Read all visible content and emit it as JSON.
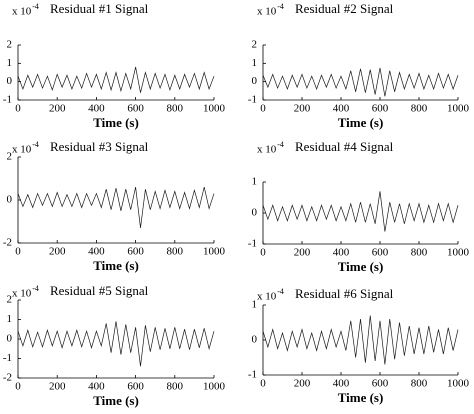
{
  "chart_data": [
    {
      "type": "line",
      "title": "Residual #1 Signal",
      "y_multiplier": "x 10",
      "y_multiplier_exponent": "-4",
      "x_label": "Time (s)",
      "color": "#1a1a1a",
      "xlim": [
        0,
        1000
      ],
      "xticks": [
        0,
        200,
        400,
        600,
        800,
        1000
      ],
      "ylim": [
        -1,
        2
      ],
      "yticks": [
        -1,
        0,
        1,
        2
      ],
      "x": [
        0,
        25,
        50,
        75,
        100,
        125,
        150,
        175,
        200,
        225,
        250,
        275,
        300,
        325,
        350,
        375,
        400,
        425,
        450,
        475,
        500,
        525,
        550,
        575,
        600,
        625,
        650,
        675,
        700,
        725,
        750,
        775,
        800,
        825,
        850,
        875,
        900,
        925,
        950,
        975,
        1000
      ],
      "values": [
        0.3,
        -0.4,
        0.35,
        -0.3,
        0.4,
        -0.35,
        0.3,
        -0.45,
        0.4,
        -0.3,
        0.35,
        -0.4,
        0.3,
        -0.35,
        0.45,
        -0.3,
        0.4,
        -0.4,
        0.5,
        -0.45,
        0.5,
        -0.5,
        0.45,
        -0.4,
        0.8,
        -0.6,
        0.5,
        -0.4,
        0.45,
        -0.35,
        0.4,
        -0.45,
        0.35,
        -0.4,
        0.4,
        -0.3,
        0.45,
        -0.4,
        0.5,
        -0.4,
        0.3
      ]
    },
    {
      "type": "line",
      "title": "Residual #2 Signal",
      "y_multiplier": "x 10",
      "y_multiplier_exponent": "-4",
      "x_label": "Time (s)",
      "color": "#1a1a1a",
      "xlim": [
        0,
        1000
      ],
      "xticks": [
        0,
        200,
        400,
        600,
        800,
        1000
      ],
      "ylim": [
        -1,
        2
      ],
      "yticks": [
        -1,
        0,
        1,
        2
      ],
      "x": [
        0,
        25,
        50,
        75,
        100,
        125,
        150,
        175,
        200,
        225,
        250,
        275,
        300,
        325,
        350,
        375,
        400,
        425,
        450,
        475,
        500,
        525,
        550,
        575,
        600,
        625,
        650,
        675,
        700,
        725,
        750,
        775,
        800,
        825,
        850,
        875,
        900,
        925,
        950,
        975,
        1000
      ],
      "values": [
        0.35,
        -0.3,
        0.4,
        -0.35,
        0.3,
        -0.4,
        0.35,
        -0.3,
        0.4,
        -0.35,
        0.3,
        -0.4,
        0.35,
        -0.3,
        0.4,
        -0.35,
        0.3,
        -0.4,
        0.6,
        -0.55,
        0.7,
        -0.6,
        0.65,
        -0.7,
        0.75,
        -0.8,
        0.6,
        -0.55,
        0.5,
        -0.4,
        0.4,
        -0.35,
        0.45,
        -0.4,
        0.35,
        -0.4,
        0.45,
        -0.35,
        0.4,
        -0.4,
        0.35
      ]
    },
    {
      "type": "line",
      "title": "Residual #3 Signal",
      "y_multiplier": "x 10",
      "y_multiplier_exponent": "-4",
      "x_label": "Time (s)",
      "color": "#1a1a1a",
      "xlim": [
        0,
        1000
      ],
      "xticks": [
        0,
        200,
        400,
        600,
        800,
        1000
      ],
      "ylim": [
        -2,
        2
      ],
      "yticks": [
        -2,
        0,
        2
      ],
      "x": [
        0,
        25,
        50,
        75,
        100,
        125,
        150,
        175,
        200,
        225,
        250,
        275,
        300,
        325,
        350,
        375,
        400,
        425,
        450,
        475,
        500,
        525,
        550,
        575,
        600,
        625,
        650,
        675,
        700,
        725,
        750,
        775,
        800,
        825,
        850,
        875,
        900,
        925,
        950,
        975,
        1000
      ],
      "values": [
        0.3,
        -0.3,
        0.25,
        -0.35,
        0.3,
        -0.25,
        0.3,
        -0.3,
        0.35,
        -0.3,
        0.25,
        -0.3,
        0.3,
        -0.35,
        0.3,
        -0.25,
        0.3,
        -0.35,
        0.5,
        -0.45,
        0.55,
        -0.5,
        0.5,
        -0.45,
        0.6,
        -1.3,
        0.5,
        -0.45,
        0.4,
        -0.4,
        0.45,
        -0.35,
        0.4,
        -0.4,
        0.35,
        -0.4,
        0.45,
        -0.35,
        0.6,
        -0.4,
        0.3
      ]
    },
    {
      "type": "line",
      "title": "Residual #4 Signal",
      "y_multiplier": "x 10",
      "y_multiplier_exponent": "-4",
      "x_label": "Time (s)",
      "color": "#1a1a1a",
      "xlim": [
        0,
        1000
      ],
      "xticks": [
        0,
        200,
        400,
        600,
        800,
        1000
      ],
      "ylim": [
        -1,
        1
      ],
      "yticks": [
        -1,
        0,
        1
      ],
      "x": [
        0,
        25,
        50,
        75,
        100,
        125,
        150,
        175,
        200,
        225,
        250,
        275,
        300,
        325,
        350,
        375,
        400,
        425,
        450,
        475,
        500,
        525,
        550,
        575,
        600,
        625,
        650,
        675,
        700,
        725,
        750,
        775,
        800,
        825,
        850,
        875,
        900,
        925,
        950,
        975,
        1000
      ],
      "values": [
        0.25,
        -0.2,
        0.25,
        -0.25,
        0.2,
        -0.25,
        0.25,
        -0.2,
        0.25,
        -0.25,
        0.2,
        -0.25,
        0.25,
        -0.2,
        0.25,
        -0.25,
        0.2,
        -0.25,
        0.3,
        -0.3,
        0.35,
        -0.3,
        0.3,
        -0.35,
        0.7,
        -0.6,
        0.35,
        -0.3,
        0.3,
        -0.35,
        0.3,
        -0.25,
        0.3,
        -0.3,
        0.25,
        -0.3,
        0.3,
        -0.25,
        0.3,
        -0.3,
        0.25
      ]
    },
    {
      "type": "line",
      "title": "Residual #5 Signal",
      "y_multiplier": "x 10",
      "y_multiplier_exponent": "-4",
      "x_label": "Time (s)",
      "color": "#1a1a1a",
      "xlim": [
        0,
        1000
      ],
      "xticks": [
        0,
        200,
        400,
        600,
        800,
        1000
      ],
      "ylim": [
        -2,
        2
      ],
      "yticks": [
        -2,
        -1,
        0,
        1,
        2
      ],
      "x": [
        0,
        25,
        50,
        75,
        100,
        125,
        150,
        175,
        200,
        225,
        250,
        275,
        300,
        325,
        350,
        375,
        400,
        425,
        450,
        475,
        500,
        525,
        550,
        575,
        600,
        625,
        650,
        675,
        700,
        725,
        750,
        775,
        800,
        825,
        850,
        875,
        900,
        925,
        950,
        975,
        1000
      ],
      "values": [
        0.4,
        -0.35,
        0.45,
        -0.4,
        0.35,
        -0.4,
        0.45,
        -0.35,
        0.4,
        -0.45,
        0.4,
        -0.35,
        0.45,
        -0.4,
        0.4,
        -0.45,
        0.4,
        -0.35,
        0.8,
        -0.7,
        0.9,
        -0.8,
        0.75,
        -0.7,
        0.6,
        -1.4,
        0.7,
        -0.65,
        0.6,
        -0.55,
        0.55,
        -0.5,
        0.6,
        -0.5,
        0.5,
        -0.55,
        0.5,
        -0.45,
        0.55,
        -0.5,
        0.4
      ]
    },
    {
      "type": "line",
      "title": "Residual #6 Signal",
      "y_multiplier": "x 10",
      "y_multiplier_exponent": "-4",
      "x_label": "Time (s)",
      "color": "#1a1a1a",
      "xlim": [
        0,
        1000
      ],
      "xticks": [
        0,
        200,
        400,
        600,
        800,
        1000
      ],
      "ylim": [
        -1,
        1
      ],
      "yticks": [
        -1,
        0,
        1
      ],
      "x": [
        0,
        25,
        50,
        75,
        100,
        125,
        150,
        175,
        200,
        225,
        250,
        275,
        300,
        325,
        350,
        375,
        400,
        425,
        450,
        475,
        500,
        525,
        550,
        575,
        600,
        625,
        650,
        675,
        700,
        725,
        750,
        775,
        800,
        825,
        850,
        875,
        900,
        925,
        950,
        975,
        1000
      ],
      "values": [
        0.25,
        -0.2,
        0.3,
        -0.25,
        0.2,
        -0.3,
        0.25,
        -0.2,
        0.3,
        -0.25,
        0.2,
        -0.3,
        0.25,
        -0.25,
        0.3,
        -0.2,
        0.25,
        -0.3,
        0.55,
        -0.5,
        0.6,
        -0.65,
        0.7,
        -0.6,
        0.55,
        -0.7,
        0.6,
        -0.55,
        0.5,
        -0.45,
        0.4,
        -0.4,
        0.35,
        -0.4,
        0.4,
        -0.35,
        0.3,
        -0.4,
        0.35,
        -0.3,
        0.3
      ]
    }
  ]
}
